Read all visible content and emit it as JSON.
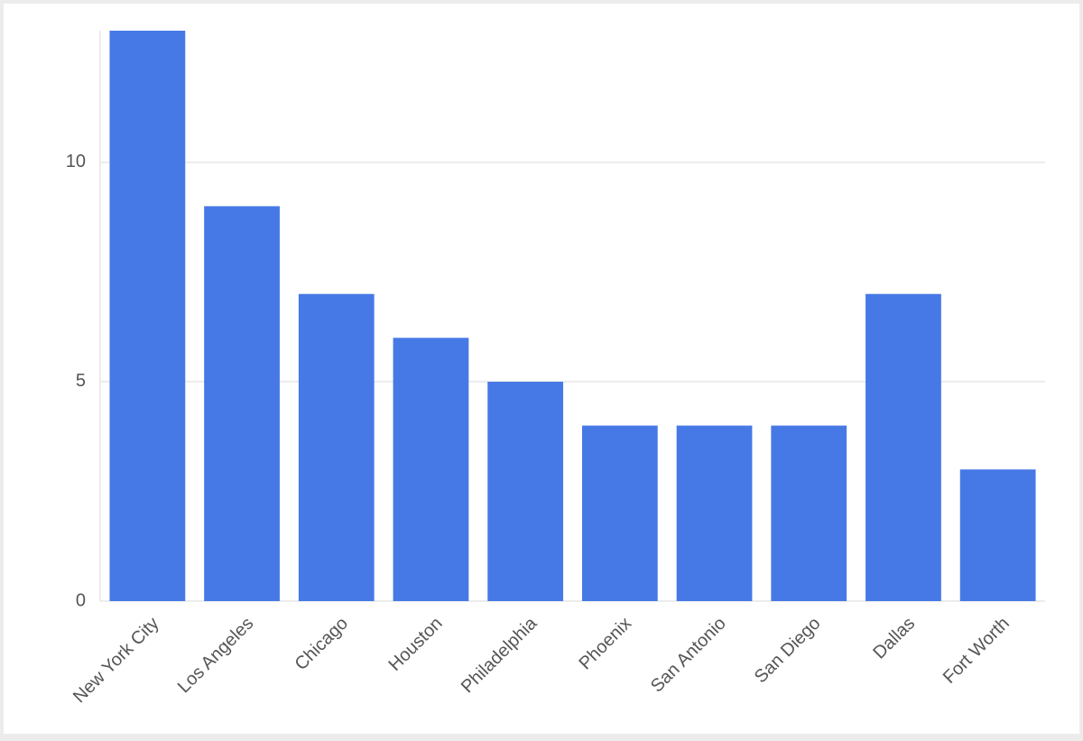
{
  "chart_data": {
    "type": "bar",
    "categories": [
      "New York City",
      "Los Angeles",
      "Chicago",
      "Houston",
      "Philadelphia",
      "Phoenix",
      "San Antonio",
      "San Diego",
      "Dallas",
      "Fort Worth"
    ],
    "values": [
      13,
      9,
      7,
      6,
      5,
      4,
      4,
      4,
      7,
      3
    ],
    "color": "#4679e6",
    "ylim": [
      0,
      13
    ],
    "yticks": [
      0,
      5,
      10
    ],
    "grid": true
  }
}
